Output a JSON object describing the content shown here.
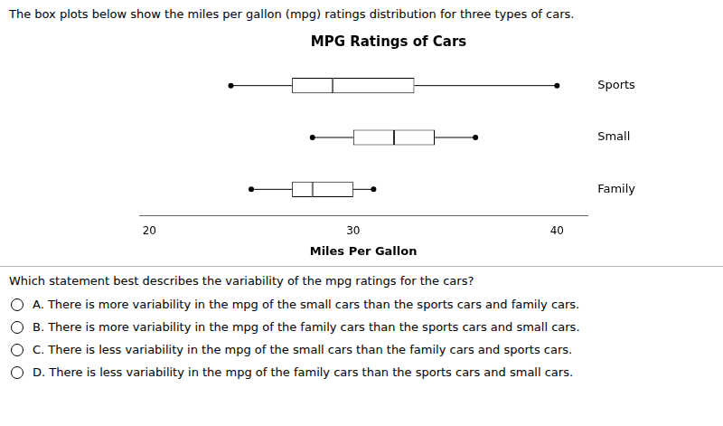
{
  "chart_data": {
    "type": "box",
    "title": "MPG Ratings of Cars",
    "subtitle": "The box plots below show the miles per gallon (mpg) ratings distribution for three types of cars.",
    "x_label": "Miles Per Gallon",
    "categories": [
      "Sports",
      "Small",
      "Family"
    ],
    "boxes": [
      {
        "min": 24,
        "q1": 27,
        "median": 29,
        "q3": 33,
        "max": 40
      },
      {
        "min": 28,
        "q1": 30,
        "median": 32,
        "q3": 34,
        "max": 36
      },
      {
        "min": 25,
        "q1": 27,
        "median": 28,
        "q3": 30,
        "max": 31
      }
    ],
    "xlim": [
      19.5,
      41.5
    ],
    "xticks": [
      20,
      30,
      40
    ],
    "grid": false,
    "color": "#ffffff",
    "annotations": [
      "Which statement best describes the variability of the mpg ratings for the cars?",
      "A.  There is more variability in the mpg of the small cars than the sports cars and family cars.",
      "B.  There is more variability in the mpg of the family cars than the sports cars and small cars.",
      "C.  There is less variability in the mpg of the small cars than the family cars and sports cars.",
      "D.  There is less variability in the mpg of the family cars than the sports cars and small cars."
    ]
  }
}
